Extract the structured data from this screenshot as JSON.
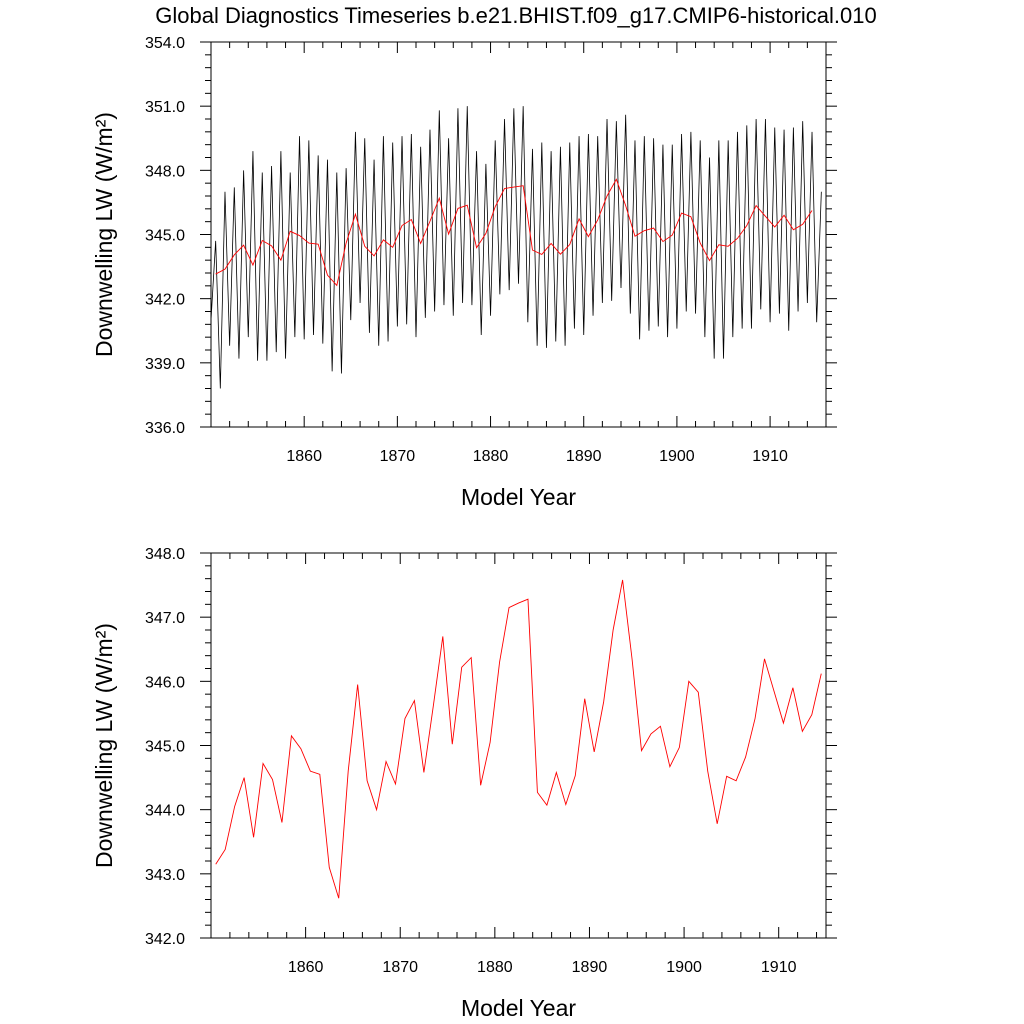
{
  "title": "Global Diagnostics Timeseries b.e21.BHIST.f09_g17.CMIP6-historical.010",
  "chart_data": [
    {
      "type": "line",
      "xlabel": "Model Year",
      "ylabel": "Downwelling LW (W/m²)",
      "xlim": [
        1850,
        1916
      ],
      "ylim": [
        336.0,
        354.0
      ],
      "x_ticks": [
        "1860",
        "1870",
        "1880",
        "1890",
        "1900",
        "1910"
      ],
      "y_ticks": [
        "336.0",
        "339.0",
        "342.0",
        "345.0",
        "348.0",
        "351.0",
        "354.0"
      ],
      "colors": {
        "monthly": "#000000",
        "annual": "#ff0000"
      },
      "series": [
        {
          "x": [
            1850.0,
            1850.5,
            1851.0,
            1851.5,
            1852.0,
            1852.5,
            1853.0,
            1853.5,
            1854.0,
            1854.5,
            1855.0,
            1855.5,
            1856.0,
            1856.5,
            1857.0,
            1857.5,
            1858.0,
            1858.5,
            1859.0,
            1859.5,
            1860.0,
            1860.5,
            1861.0,
            1861.5,
            1862.0,
            1862.5,
            1863.0,
            1863.5,
            1864.0,
            1864.5,
            1865.0,
            1865.5,
            1866.0,
            1866.5,
            1867.0,
            1867.5,
            1868.0,
            1868.5,
            1869.0,
            1869.5,
            1870.0,
            1870.5,
            1871.0,
            1871.5,
            1872.0,
            1872.5,
            1873.0,
            1873.5,
            1874.0,
            1874.5,
            1875.0,
            1875.5,
            1876.0,
            1876.5,
            1877.0,
            1877.5,
            1878.0,
            1878.5,
            1879.0,
            1879.5,
            1880.0,
            1880.5,
            1881.0,
            1881.5,
            1882.0,
            1882.5,
            1883.0,
            1883.5,
            1884.0,
            1884.5,
            1885.0,
            1885.5,
            1886.0,
            1886.5,
            1887.0,
            1887.5,
            1888.0,
            1888.5,
            1889.0,
            1889.5,
            1890.0,
            1890.5,
            1891.0,
            1891.5,
            1892.0,
            1892.5,
            1893.0,
            1893.5,
            1894.0,
            1894.5,
            1895.0,
            1895.5,
            1896.0,
            1896.5,
            1897.0,
            1897.5,
            1898.0,
            1898.5,
            1899.0,
            1899.5,
            1900.0,
            1900.5,
            1901.0,
            1901.5,
            1902.0,
            1902.5,
            1903.0,
            1903.5,
            1904.0,
            1904.5,
            1905.0,
            1905.5,
            1906.0,
            1906.5,
            1907.0,
            1907.5,
            1908.0,
            1908.5,
            1909.0,
            1909.5,
            1910.0,
            1910.5,
            1911.0,
            1911.5,
            1912.0,
            1912.5,
            1913.0,
            1913.5,
            1914.0,
            1914.5,
            1915.0,
            1915.5
          ],
          "values": [
            341.0,
            344.7,
            337.8,
            347.0,
            339.8,
            347.2,
            339.2,
            348.0,
            340.2,
            348.9,
            339.1,
            347.9,
            339.1,
            348.2,
            339.5,
            348.9,
            339.2,
            347.9,
            340.2,
            349.6,
            340.1,
            349.4,
            340.3,
            348.7,
            339.9,
            348.5,
            338.6,
            347.9,
            338.5,
            348.1,
            341.0,
            349.8,
            341.8,
            349.5,
            340.4,
            348.5,
            339.8,
            349.6,
            340.0,
            349.3,
            340.7,
            349.6,
            340.8,
            349.7,
            340.2,
            349.1,
            341.1,
            349.9,
            341.4,
            350.8,
            341.7,
            349.5,
            341.2,
            350.9,
            341.8,
            351.0,
            341.7,
            348.9,
            340.3,
            348.3,
            341.2,
            349.4,
            342.2,
            350.4,
            342.4,
            350.9,
            342.7,
            351.0,
            340.9,
            349.0,
            339.8,
            349.3,
            339.7,
            348.9,
            340.0,
            349.1,
            339.8,
            349.3,
            340.6,
            349.6,
            340.3,
            349.7,
            341.2,
            349.6,
            341.8,
            350.4,
            341.9,
            350.3,
            342.5,
            350.6,
            341.3,
            349.4,
            340.1,
            349.6,
            340.5,
            349.5,
            340.7,
            349.2,
            340.2,
            349.2,
            340.6,
            349.7,
            341.4,
            349.8,
            341.3,
            349.4,
            340.2,
            348.6,
            339.2,
            349.4,
            339.2,
            349.4,
            340.2,
            349.8,
            340.6,
            350.1,
            340.6,
            350.4,
            341.5,
            350.4,
            340.9,
            350.0,
            341.3,
            349.9,
            340.5,
            350.0,
            341.4,
            350.3,
            341.8,
            349.8,
            340.9,
            347.0
          ]
        },
        {
          "x": [
            1850.5,
            1851.5,
            1852.5,
            1853.5,
            1854.5,
            1855.5,
            1856.5,
            1857.5,
            1858.5,
            1859.5,
            1860.5,
            1861.5,
            1862.5,
            1863.5,
            1864.5,
            1865.5,
            1866.5,
            1867.5,
            1868.5,
            1869.5,
            1870.5,
            1871.5,
            1872.5,
            1873.5,
            1874.5,
            1875.5,
            1876.5,
            1877.5,
            1878.5,
            1879.5,
            1880.5,
            1881.5,
            1882.5,
            1883.5,
            1884.5,
            1885.5,
            1886.5,
            1887.5,
            1888.5,
            1889.5,
            1890.5,
            1891.5,
            1892.5,
            1893.5,
            1894.5,
            1895.5,
            1896.5,
            1897.5,
            1898.5,
            1899.5,
            1900.5,
            1901.5,
            1902.5,
            1903.5,
            1904.5,
            1905.5,
            1906.5,
            1907.5,
            1908.5,
            1909.5,
            1910.5,
            1911.5,
            1912.5,
            1913.5,
            1914.5
          ],
          "values": [
            343.15,
            343.38,
            344.05,
            344.5,
            343.57,
            344.72,
            344.47,
            343.8,
            345.15,
            344.95,
            344.6,
            344.55,
            343.1,
            342.62,
            344.6,
            345.95,
            344.45,
            344.0,
            344.75,
            344.4,
            345.42,
            345.7,
            344.58,
            345.62,
            346.7,
            345.02,
            346.22,
            346.37,
            344.38,
            345.05,
            346.3,
            347.15,
            347.22,
            347.28,
            344.27,
            344.07,
            344.58,
            344.08,
            344.53,
            345.73,
            344.9,
            345.68,
            346.8,
            347.58,
            346.35,
            344.92,
            345.18,
            345.3,
            344.67,
            344.97,
            346.0,
            345.83,
            344.6,
            343.78,
            344.52,
            344.45,
            344.82,
            345.42,
            346.35,
            345.85,
            345.35,
            345.9,
            345.22,
            345.48,
            346.12
          ]
        }
      ]
    },
    {
      "type": "line",
      "xlabel": "Model Year",
      "ylabel": "Downwelling LW (W/m²)",
      "xlim": [
        1850,
        1915
      ],
      "ylim": [
        342.0,
        348.0
      ],
      "x_ticks": [
        "1860",
        "1870",
        "1880",
        "1890",
        "1900",
        "1910"
      ],
      "y_ticks": [
        "342.0",
        "343.0",
        "344.0",
        "345.0",
        "346.0",
        "347.0",
        "348.0"
      ],
      "colors": {
        "annual": "#ff0000"
      },
      "series": [
        {
          "x": [
            1850.5,
            1851.5,
            1852.5,
            1853.5,
            1854.5,
            1855.5,
            1856.5,
            1857.5,
            1858.5,
            1859.5,
            1860.5,
            1861.5,
            1862.5,
            1863.5,
            1864.5,
            1865.5,
            1866.5,
            1867.5,
            1868.5,
            1869.5,
            1870.5,
            1871.5,
            1872.5,
            1873.5,
            1874.5,
            1875.5,
            1876.5,
            1877.5,
            1878.5,
            1879.5,
            1880.5,
            1881.5,
            1882.5,
            1883.5,
            1884.5,
            1885.5,
            1886.5,
            1887.5,
            1888.5,
            1889.5,
            1890.5,
            1891.5,
            1892.5,
            1893.5,
            1894.5,
            1895.5,
            1896.5,
            1897.5,
            1898.5,
            1899.5,
            1900.5,
            1901.5,
            1902.5,
            1903.5,
            1904.5,
            1905.5,
            1906.5,
            1907.5,
            1908.5,
            1909.5,
            1910.5,
            1911.5,
            1912.5,
            1913.5,
            1914.5
          ],
          "values": [
            343.15,
            343.38,
            344.05,
            344.5,
            343.57,
            344.72,
            344.47,
            343.8,
            345.15,
            344.95,
            344.6,
            344.55,
            343.1,
            342.62,
            344.6,
            345.95,
            344.45,
            344.0,
            344.75,
            344.4,
            345.42,
            345.7,
            344.58,
            345.62,
            346.7,
            345.02,
            346.22,
            346.37,
            344.38,
            345.05,
            346.3,
            347.15,
            347.22,
            347.28,
            344.27,
            344.07,
            344.58,
            344.08,
            344.53,
            345.73,
            344.9,
            345.68,
            346.8,
            347.58,
            346.35,
            344.92,
            345.18,
            345.3,
            344.67,
            344.97,
            346.0,
            345.83,
            344.6,
            343.78,
            344.52,
            344.45,
            344.82,
            345.42,
            346.35,
            345.85,
            345.35,
            345.9,
            345.22,
            345.48,
            346.12
          ]
        }
      ]
    }
  ]
}
